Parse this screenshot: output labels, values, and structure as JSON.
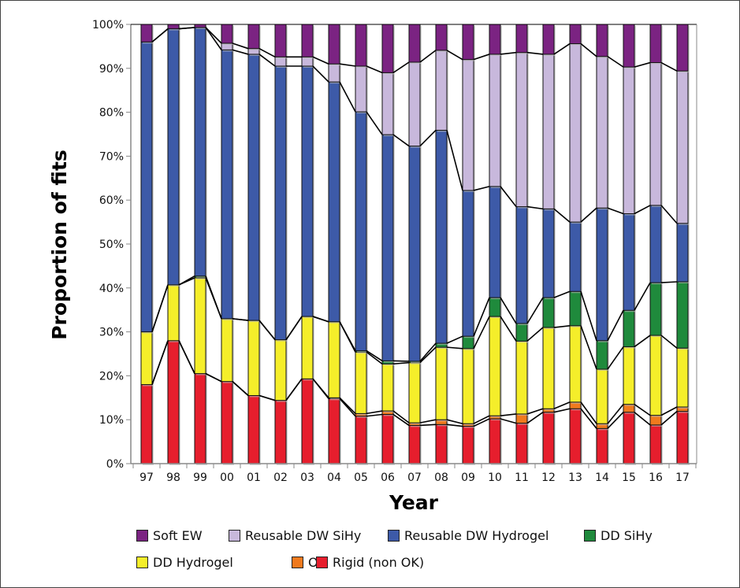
{
  "chart_data": {
    "type": "bar",
    "stacked": true,
    "xlabel": "Year",
    "ylabel": "Proportion of fits",
    "ylim": [
      0,
      100
    ],
    "y_ticks": [
      "0%",
      "10%",
      "20%",
      "30%",
      "40%",
      "50%",
      "60%",
      "70%",
      "80%",
      "90%",
      "100%"
    ],
    "categories": [
      "97",
      "98",
      "99",
      "00",
      "01",
      "02",
      "03",
      "04",
      "05",
      "06",
      "07",
      "08",
      "09",
      "10",
      "11",
      "12",
      "13",
      "14",
      "15",
      "16",
      "17"
    ],
    "legend_position": "bottom",
    "series": [
      {
        "name": "Rigid (non OK)",
        "color": "#e61e2d",
        "values": [
          18,
          28,
          20.5,
          18.7,
          15.5,
          14.4,
          19.3,
          14.8,
          10.8,
          11.2,
          8.7,
          8.9,
          8.5,
          10.2,
          9.2,
          11.7,
          12.5,
          8,
          11.7,
          8.8,
          11.9
        ]
      },
      {
        "name": "OK",
        "color": "#f07a1e",
        "values": [
          0,
          0,
          0,
          0,
          0,
          0,
          0,
          0.2,
          0.6,
          0.8,
          0.6,
          1.1,
          0.6,
          0.7,
          2.1,
          0.8,
          1.5,
          1.1,
          1.8,
          2.2,
          1.0
        ]
      },
      {
        "name": "DD Hydrogel",
        "color": "#f5ee2a",
        "values": [
          12,
          12.7,
          21.8,
          14.3,
          17.1,
          13.8,
          14.2,
          17.3,
          14,
          10.7,
          13.7,
          16.5,
          17.1,
          22.6,
          16.6,
          18.5,
          17.4,
          12.4,
          13.1,
          18.2,
          13.4
        ]
      },
      {
        "name": "DD SiHy",
        "color": "#1f8a3c",
        "values": [
          0,
          0,
          0.4,
          0,
          0,
          0,
          0,
          0,
          0.3,
          0.7,
          0.3,
          0.9,
          2.8,
          4.3,
          4,
          6.8,
          7.8,
          6.5,
          8.3,
          12,
          15.1
        ]
      },
      {
        "name": "Reusable DW Hydrogel",
        "color": "#3d5aa8",
        "values": [
          66,
          58.3,
          56.6,
          61.2,
          60.6,
          62.3,
          57,
          54.6,
          54.4,
          51.5,
          49,
          48.5,
          33.2,
          25.3,
          26.6,
          20.2,
          15.8,
          30.2,
          22,
          17.6,
          13.3
        ]
      },
      {
        "name": "Reusable DW SiHy",
        "color": "#c8b8dc",
        "values": [
          0,
          0,
          0,
          1.5,
          1.3,
          2.1,
          2.1,
          4.1,
          10.4,
          14.1,
          19.1,
          18.2,
          29.8,
          30.1,
          35.1,
          35.2,
          40.6,
          34.5,
          33.4,
          32.5,
          34.7
        ]
      },
      {
        "name": "Soft EW",
        "color": "#7b2382",
        "values": [
          4,
          1,
          0.7,
          4.3,
          5.5,
          7.4,
          7.4,
          9,
          9.5,
          11,
          8.6,
          5.9,
          8,
          6.8,
          6.4,
          6.8,
          4.4,
          7.3,
          9.7,
          8.7,
          10.6
        ]
      }
    ],
    "legend_order": [
      "Soft EW",
      "Reusable DW SiHy",
      "Reusable DW Hydrogel",
      "DD SiHy",
      "DD Hydrogel",
      "OK",
      "Rigid (non OK)"
    ]
  }
}
